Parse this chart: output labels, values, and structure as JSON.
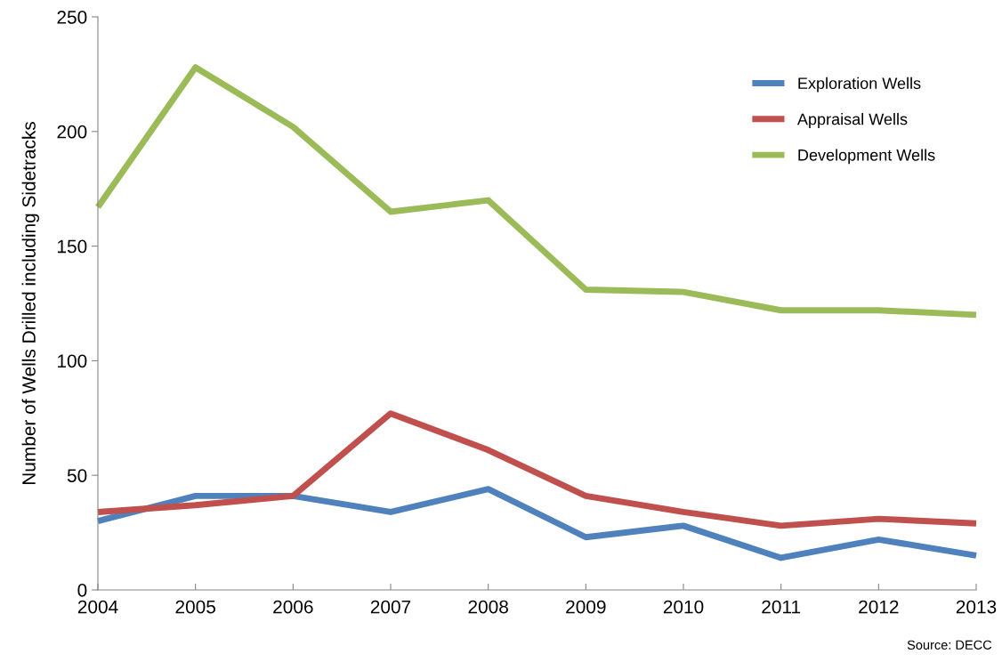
{
  "chart_data": {
    "type": "line",
    "ylabel": "Number of Wells Drilled including Sidetracks",
    "x": [
      2004,
      2005,
      2006,
      2007,
      2008,
      2009,
      2010,
      2011,
      2012,
      2013
    ],
    "xlim": [
      2004,
      2013
    ],
    "xticks": [
      2004,
      2005,
      2006,
      2007,
      2008,
      2009,
      2010,
      2011,
      2012,
      2013
    ],
    "ylim": [
      0,
      250
    ],
    "yticks": [
      0,
      50,
      100,
      150,
      200,
      250
    ],
    "grid": false,
    "legend": "top right",
    "marker": "none",
    "line_style": "solid",
    "annotations": [
      "Source: DECC"
    ],
    "series": [
      {
        "name": "Exploration Wells",
        "color": "#4f81bd",
        "values": [
          30,
          41,
          41,
          34,
          44,
          23,
          28,
          14,
          22,
          15
        ]
      },
      {
        "name": "Appraisal Wells",
        "color": "#c0504d",
        "values": [
          34,
          37,
          41,
          77,
          61,
          41,
          34,
          28,
          31,
          29
        ]
      },
      {
        "name": "Development Wells",
        "color": "#9bbb59",
        "values": [
          167,
          228,
          202,
          165,
          170,
          131,
          130,
          122,
          122,
          120
        ]
      }
    ]
  }
}
